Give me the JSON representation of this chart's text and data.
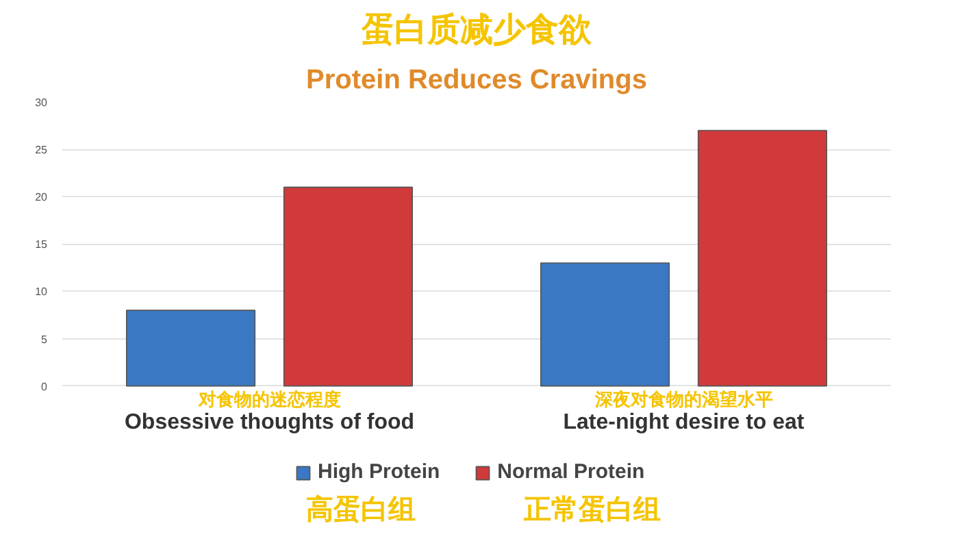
{
  "chart_data": {
    "type": "bar",
    "title": "蛋白质减少食欲",
    "subtitle": "Protein Reduces Cravings",
    "categories": [
      "Obsessive thoughts of food",
      "Late-night desire to eat"
    ],
    "series": [
      {
        "name": "High Protein",
        "color": "#3a78c4",
        "values": [
          8,
          13
        ]
      },
      {
        "name": "Normal Protein",
        "color": "#d03a3a",
        "values": [
          21,
          27
        ]
      }
    ],
    "ylim": [
      0,
      30
    ],
    "yticks": [
      0,
      5,
      10,
      15,
      20,
      25,
      30
    ],
    "grid": "y",
    "legend": "bottom",
    "annotations": [
      "对食物的迷恋程度",
      "深夜对食物的渴望水平",
      "高蛋白组",
      "正常蛋白组"
    ]
  }
}
